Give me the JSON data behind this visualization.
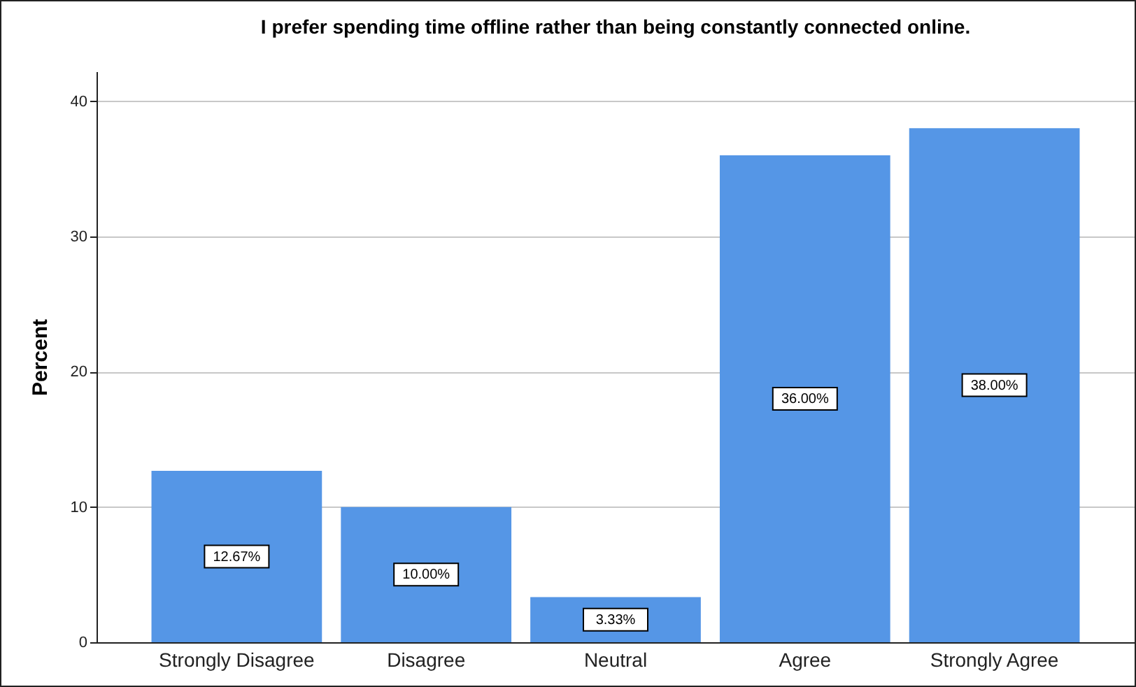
{
  "chart_data": {
    "type": "bar",
    "title": "I prefer spending time offline rather than being constantly connected online.",
    "ylabel": "Percent",
    "categories": [
      "Strongly Disagree",
      "Disagree",
      "Neutral",
      "Agree",
      "Strongly Agree"
    ],
    "values": [
      12.67,
      10.0,
      3.33,
      36.0,
      38.0
    ],
    "value_labels": [
      "12.67%",
      "10.00%",
      "3.33%",
      "36.00%",
      "38.00%"
    ],
    "color": "#5596e6",
    "ylim": [
      0,
      42.2
    ],
    "yticks": [
      0,
      10,
      20,
      30,
      40
    ],
    "grid": "y"
  }
}
